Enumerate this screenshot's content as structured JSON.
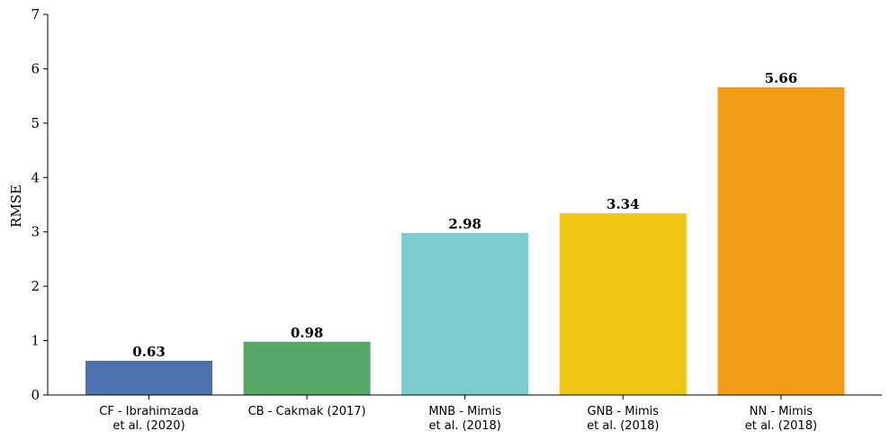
{
  "chart_data": {
    "type": "bar",
    "title": "",
    "xlabel": "",
    "ylabel": "RMSE",
    "ylim": [
      0,
      7
    ],
    "yticks": [
      0,
      1,
      2,
      3,
      4,
      5,
      6,
      7
    ],
    "grid": false,
    "categories": [
      [
        "CF - Ibrahimzada",
        "et al. (2020)"
      ],
      [
        "CB - Cakmak (2017)"
      ],
      [
        "MNB - Mimis",
        "et al. (2018)"
      ],
      [
        "GNB - Mimis",
        "et al. (2018)"
      ],
      [
        "NN - Mimis",
        "et al. (2018)"
      ]
    ],
    "values": [
      0.63,
      0.98,
      2.98,
      3.34,
      5.66
    ],
    "value_labels": [
      "0.63",
      "0.98",
      "2.98",
      "3.34",
      "5.66"
    ],
    "colors": [
      "#4c72b0",
      "#55a868",
      "#7bcdcd",
      "#f0c514",
      "#f39c15"
    ]
  }
}
